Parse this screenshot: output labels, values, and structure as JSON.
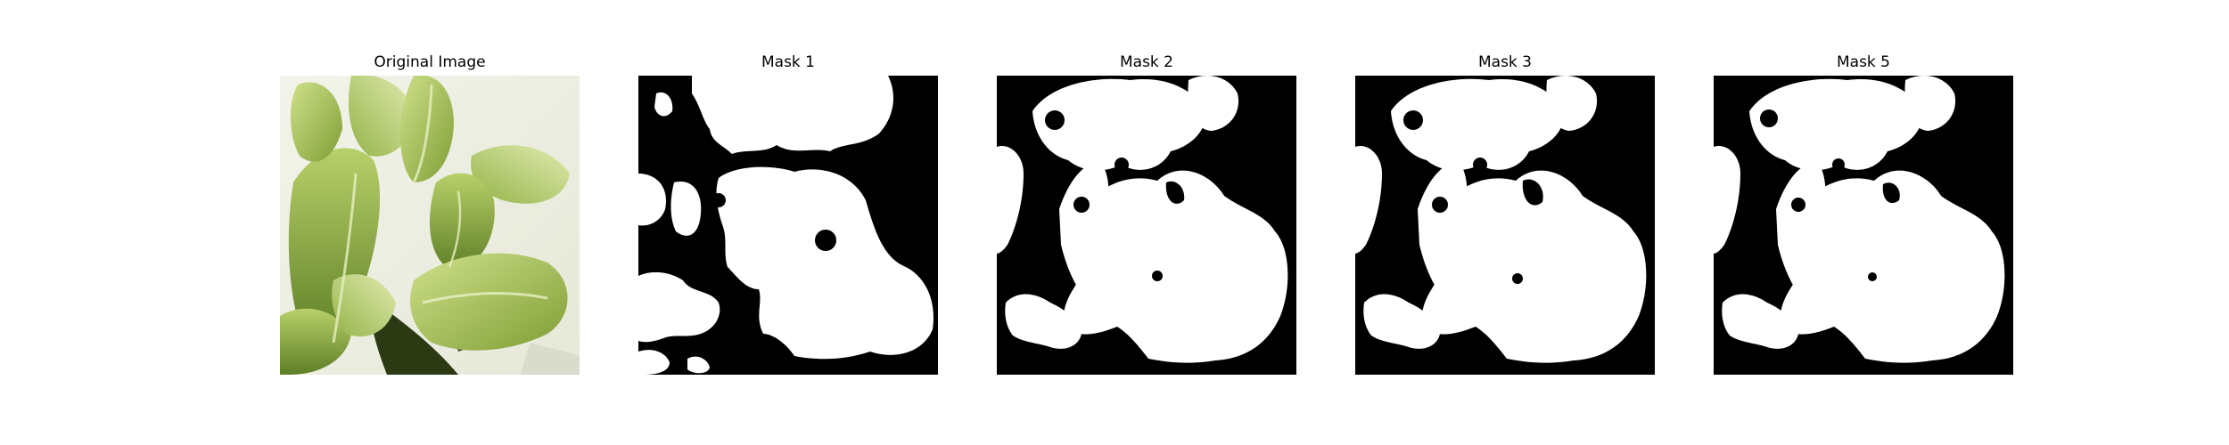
{
  "panels": [
    {
      "title": "Original Image",
      "image": "photo of green leafy plant (bok choy)"
    },
    {
      "title": "Mask 1",
      "image": "binary segmentation mask"
    },
    {
      "title": "Mask 2",
      "image": "binary segmentation mask"
    },
    {
      "title": "Mask 3",
      "image": "binary segmentation mask"
    },
    {
      "title": "Mask 5",
      "image": "binary segmentation mask"
    }
  ],
  "colors": {
    "background": "#ffffff",
    "mask_foreground": "#ffffff",
    "mask_background": "#000000",
    "leaf_light": "#cfe08a",
    "leaf_mid": "#9cba4a",
    "leaf_dark": "#4d6b1f"
  }
}
